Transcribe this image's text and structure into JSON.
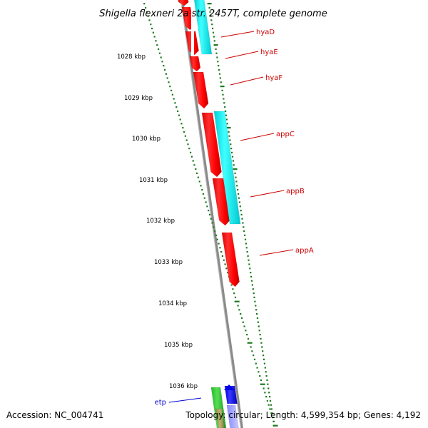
{
  "header": {
    "title": "Shigella flexneri 2a str. 2457T, complete genome"
  },
  "footer": {
    "accession": "Accession: NC_004741",
    "summary": "Topology: circular; Length: 4,599,354 bp; Genes: 4,192"
  },
  "scale": {
    "labels": [
      "1028 kbp",
      "1029 kbp",
      "1030 kbp",
      "1031 kbp",
      "1032 kbp",
      "1033 kbp",
      "1034 kbp",
      "1035 kbp",
      "1036 kbp"
    ]
  },
  "gene_labels": [
    "hyaD",
    "hyaE",
    "hyaF",
    "appC",
    "appB",
    "appA",
    "etp"
  ],
  "colors": {
    "background": "#ffffff",
    "backbone": "#8a8a8a",
    "gene_red": "#ff0000",
    "gene_cyan": "#00e5ee",
    "gene_green": "#33cc33",
    "gene_olive": "#a0a050",
    "gene_blue": "#0000ff",
    "tick_green": "#1e7a1e",
    "label_red": "#cc0000",
    "label_blue": "#0000cc"
  }
}
